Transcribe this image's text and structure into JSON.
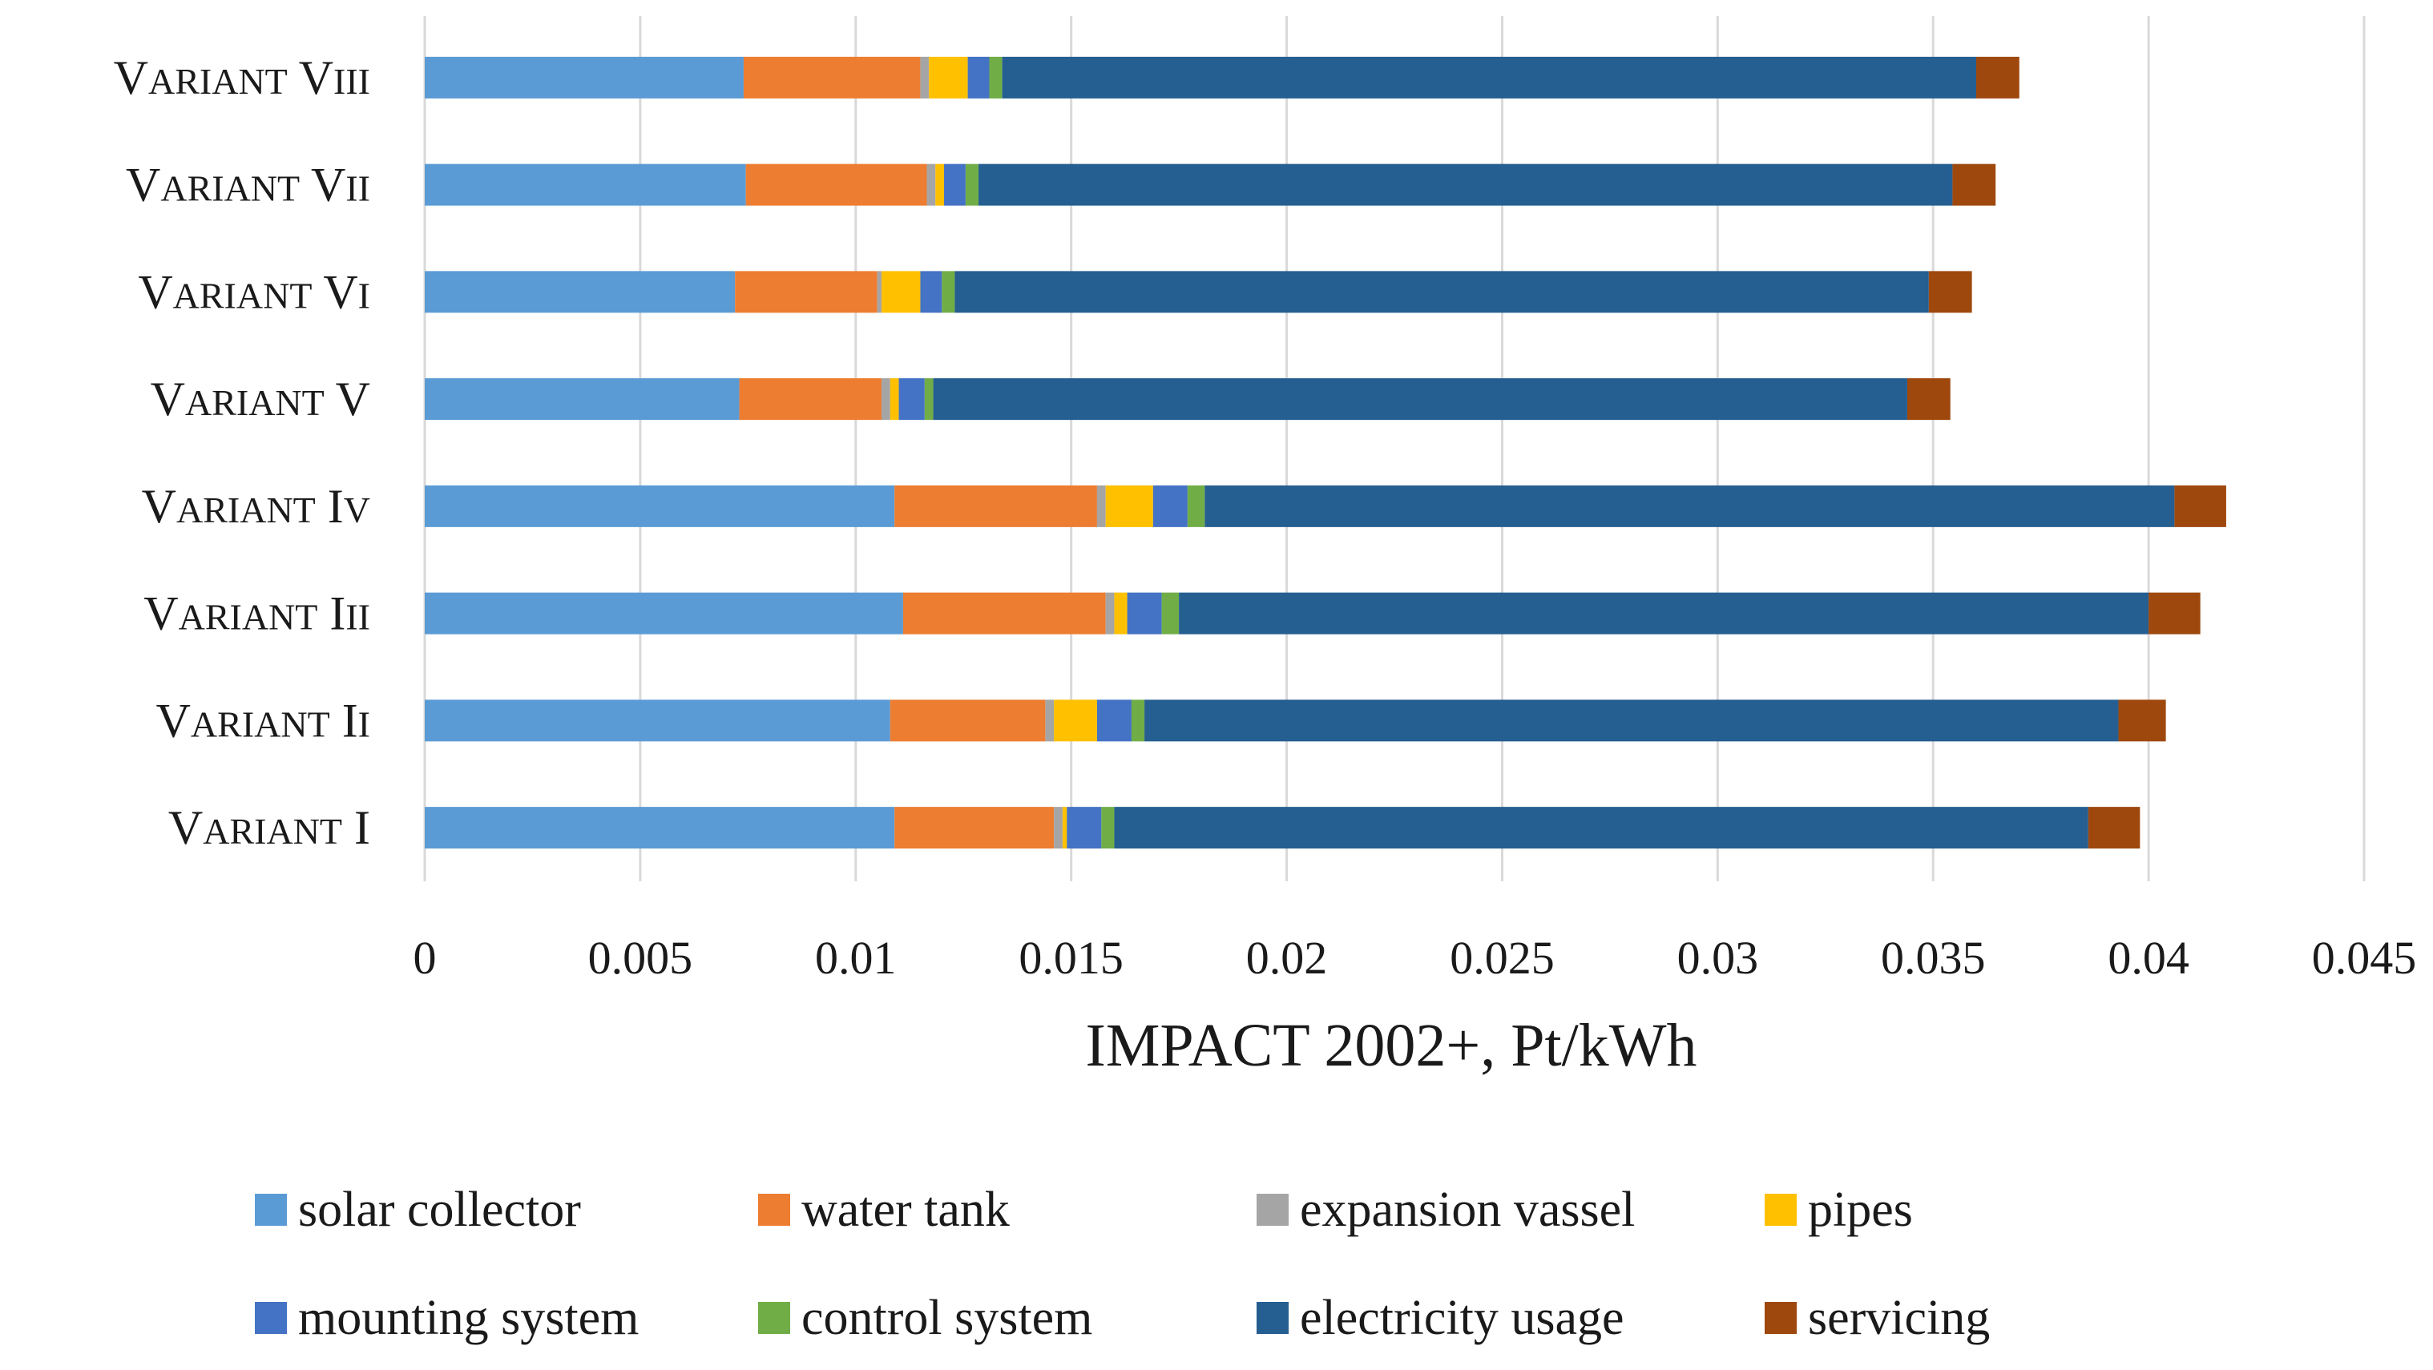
{
  "chart_data": {
    "type": "bar",
    "orientation": "horizontal",
    "stacked": true,
    "title": "",
    "xlabel": "IMPACT 2002+, Pt/kWh",
    "ylabel": "",
    "xlim": [
      0,
      0.045
    ],
    "xticks": [
      0,
      0.005,
      0.01,
      0.015,
      0.02,
      0.025,
      0.03,
      0.035,
      0.04,
      0.045
    ],
    "xtick_labels": [
      "0",
      "0.005",
      "0.01",
      "0.015",
      "0.02",
      "0.025",
      "0.03",
      "0.035",
      "0.04",
      "0.045"
    ],
    "grid": "vertical",
    "legend_position": "bottom",
    "categories": [
      "Variant VIII",
      "Variant VII",
      "Variant VI",
      "Variant V",
      "Variant IV",
      "Variant III",
      "Variant II",
      "Variant I"
    ],
    "series": [
      {
        "name": "solar collector",
        "color": "#5b9bd5",
        "values": [
          0.0074,
          0.00745,
          0.0072,
          0.0073,
          0.0109,
          0.0111,
          0.0108,
          0.0109
        ]
      },
      {
        "name": "water tank",
        "color": "#ed7d31",
        "values": [
          0.0041,
          0.0042,
          0.0033,
          0.0033,
          0.0047,
          0.0047,
          0.0036,
          0.0037
        ]
      },
      {
        "name": "expansion vassel",
        "color": "#a5a5a5",
        "values": [
          0.0002,
          0.0002,
          0.0001,
          0.0002,
          0.0002,
          0.0002,
          0.0002,
          0.0002
        ]
      },
      {
        "name": "pipes",
        "color": "#ffc000",
        "values": [
          0.0009,
          0.0002,
          0.0009,
          0.0002,
          0.0011,
          0.0003,
          0.001,
          0.0001
        ]
      },
      {
        "name": "mounting system",
        "color": "#4472c4",
        "values": [
          0.0005,
          0.0005,
          0.0005,
          0.0006,
          0.0008,
          0.0008,
          0.0008,
          0.0008
        ]
      },
      {
        "name": "control system",
        "color": "#70ad47",
        "values": [
          0.0003,
          0.0003,
          0.0003,
          0.0002,
          0.0004,
          0.0004,
          0.0003,
          0.0003
        ]
      },
      {
        "name": "electricity usage",
        "color": "#255e91",
        "values": [
          0.0226,
          0.0226,
          0.0226,
          0.0226,
          0.0225,
          0.0225,
          0.0226,
          0.0226
        ]
      },
      {
        "name": "servicing",
        "color": "#9e480e",
        "values": [
          0.001,
          0.001,
          0.001,
          0.001,
          0.0012,
          0.0012,
          0.0011,
          0.0012
        ]
      }
    ]
  }
}
